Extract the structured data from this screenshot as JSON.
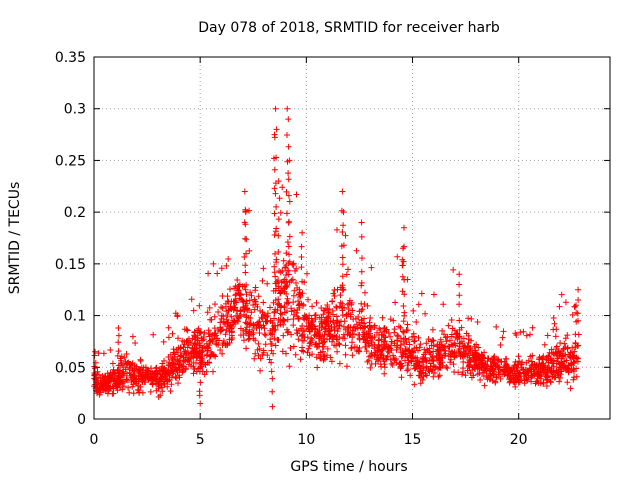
{
  "chart_data": {
    "type": "scatter",
    "title": "Day 078 of 2018, SRMTID for receiver harb",
    "xlabel": "GPS time / hours",
    "ylabel": "SRMTID / TECUs",
    "xlim": [
      0,
      24.3
    ],
    "ylim": [
      0,
      0.35
    ],
    "xticks": [
      0,
      5,
      10,
      15,
      20
    ],
    "xtick_labels": [
      "0",
      "5",
      "10",
      "15",
      "20"
    ],
    "yticks": [
      0,
      0.05,
      0.1,
      0.15,
      0.2,
      0.25,
      0.3,
      0.35
    ],
    "ytick_labels": [
      "0",
      "0.05",
      "0.1",
      "0.15",
      "0.2",
      "0.25",
      "0.3",
      "0.35"
    ],
    "grid": true,
    "marker": "+",
    "color": "#ff0000",
    "envelope": {
      "x": [
        0,
        0.5,
        1,
        1.5,
        2,
        2.5,
        3,
        3.5,
        4,
        4.5,
        5,
        5.5,
        6,
        6.5,
        7,
        7.5,
        8,
        8.5,
        9,
        9.5,
        10,
        10.5,
        11,
        11.5,
        12,
        12.5,
        13,
        13.5,
        14,
        14.5,
        15,
        15.5,
        16,
        16.5,
        17,
        17.5,
        18,
        18.5,
        19,
        19.5,
        20,
        20.5,
        21,
        21.5,
        22,
        22.5,
        22.8
      ],
      "center": [
        0.035,
        0.033,
        0.036,
        0.045,
        0.04,
        0.042,
        0.038,
        0.045,
        0.055,
        0.07,
        0.065,
        0.07,
        0.085,
        0.1,
        0.11,
        0.095,
        0.085,
        0.1,
        0.12,
        0.11,
        0.09,
        0.08,
        0.085,
        0.09,
        0.095,
        0.08,
        0.075,
        0.07,
        0.065,
        0.07,
        0.06,
        0.055,
        0.06,
        0.065,
        0.07,
        0.06,
        0.055,
        0.05,
        0.048,
        0.045,
        0.045,
        0.045,
        0.048,
        0.05,
        0.055,
        0.052,
        0.05
      ],
      "spread": [
        0.015,
        0.015,
        0.02,
        0.025,
        0.02,
        0.02,
        0.02,
        0.025,
        0.03,
        0.035,
        0.035,
        0.035,
        0.04,
        0.045,
        0.05,
        0.045,
        0.045,
        0.06,
        0.08,
        0.07,
        0.045,
        0.035,
        0.045,
        0.05,
        0.05,
        0.04,
        0.035,
        0.035,
        0.035,
        0.045,
        0.03,
        0.03,
        0.03,
        0.035,
        0.035,
        0.03,
        0.025,
        0.025,
        0.022,
        0.02,
        0.02,
        0.02,
        0.022,
        0.025,
        0.03,
        0.03,
        0.03
      ]
    },
    "point_count": 2200,
    "peak_points": [
      {
        "x": 8.55,
        "y": 0.3
      },
      {
        "x": 8.6,
        "y": 0.28
      },
      {
        "x": 8.5,
        "y": 0.275
      },
      {
        "x": 9.1,
        "y": 0.3
      },
      {
        "x": 9.15,
        "y": 0.29
      },
      {
        "x": 9.2,
        "y": 0.25
      },
      {
        "x": 7.1,
        "y": 0.22
      },
      {
        "x": 7.15,
        "y": 0.2
      },
      {
        "x": 8.7,
        "y": 0.23
      },
      {
        "x": 11.7,
        "y": 0.22
      },
      {
        "x": 11.75,
        "y": 0.2
      },
      {
        "x": 12.6,
        "y": 0.19
      },
      {
        "x": 14.6,
        "y": 0.185
      },
      {
        "x": 14.55,
        "y": 0.165
      },
      {
        "x": 17.2,
        "y": 0.14
      },
      {
        "x": 9.8,
        "y": 0.18
      },
      {
        "x": 8.4,
        "y": 0.012
      },
      {
        "x": 5.0,
        "y": 0.015
      },
      {
        "x": 22.8,
        "y": 0.125
      },
      {
        "x": 22.7,
        "y": 0.11
      },
      {
        "x": 0.05,
        "y": 0.065
      },
      {
        "x": 1.15,
        "y": 0.088
      }
    ]
  }
}
